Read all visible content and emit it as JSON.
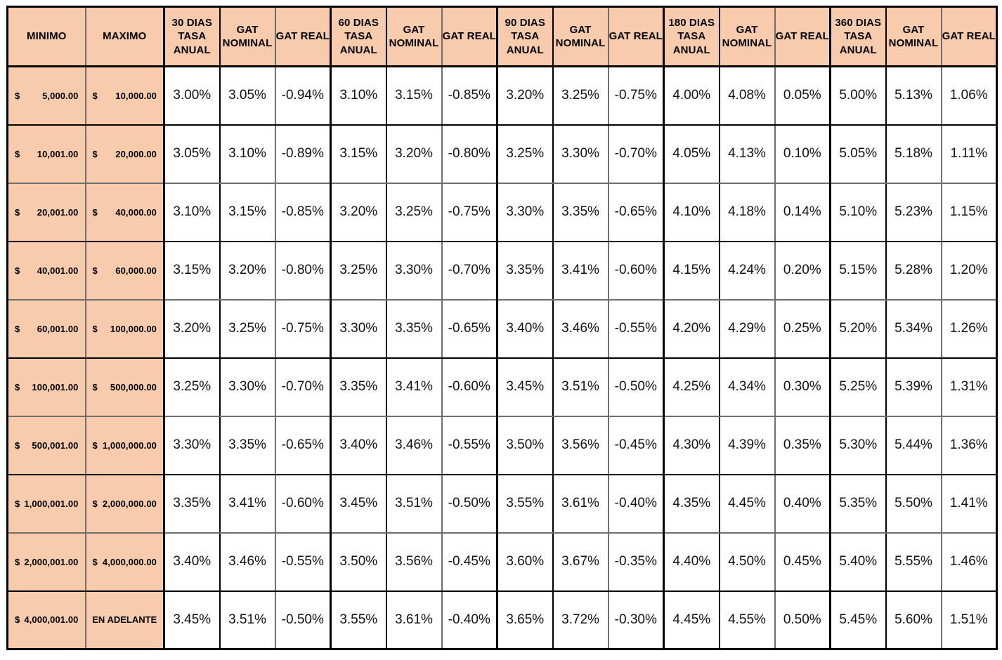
{
  "colors": {
    "header_bg": "#F8CBAD",
    "grid_black": "#000000",
    "grid_gray": "#6E6E6E"
  },
  "table": {
    "currency_symbol": "$",
    "header": [
      "MINIMO",
      "MAXIMO",
      "30 DIAS\nTASA\nANUAL",
      "GAT\nNOMINAL",
      "GAT REAL",
      "60 DIAS\nTASA\nANUAL",
      "GAT\nNOMINAL",
      "GAT REAL",
      "90 DIAS\nTASA\nANUAL",
      "GAT\nNOMINAL",
      "GAT REAL",
      "180 DIAS\nTASA\nANUAL",
      "GAT\nNOMINAL",
      "GAT REAL",
      "360 DIAS\nTASA\nANUAL",
      "GAT\nNOMINAL",
      "GAT REAL"
    ],
    "rows": [
      {
        "minimo": "5,000.00",
        "maximo": "10,000.00",
        "maximo_is_text": false,
        "rates": [
          "3.00%",
          "3.05%",
          "-0.94%",
          "3.10%",
          "3.15%",
          "-0.85%",
          "3.20%",
          "3.25%",
          "-0.75%",
          "4.00%",
          "4.08%",
          "0.05%",
          "5.00%",
          "5.13%",
          "1.06%"
        ]
      },
      {
        "minimo": "10,001.00",
        "maximo": "20,000.00",
        "maximo_is_text": false,
        "rates": [
          "3.05%",
          "3.10%",
          "-0.89%",
          "3.15%",
          "3.20%",
          "-0.80%",
          "3.25%",
          "3.30%",
          "-0.70%",
          "4.05%",
          "4.13%",
          "0.10%",
          "5.05%",
          "5.18%",
          "1.11%"
        ]
      },
      {
        "minimo": "20,001.00",
        "maximo": "40,000.00",
        "maximo_is_text": false,
        "rates": [
          "3.10%",
          "3.15%",
          "-0.85%",
          "3.20%",
          "3.25%",
          "-0.75%",
          "3.30%",
          "3.35%",
          "-0.65%",
          "4.10%",
          "4.18%",
          "0.14%",
          "5.10%",
          "5.23%",
          "1.15%"
        ]
      },
      {
        "minimo": "40,001.00",
        "maximo": "60,000.00",
        "maximo_is_text": false,
        "rates": [
          "3.15%",
          "3.20%",
          "-0.80%",
          "3.25%",
          "3.30%",
          "-0.70%",
          "3.35%",
          "3.41%",
          "-0.60%",
          "4.15%",
          "4.24%",
          "0.20%",
          "5.15%",
          "5.28%",
          "1.20%"
        ]
      },
      {
        "minimo": "60,001.00",
        "maximo": "100,000.00",
        "maximo_is_text": false,
        "rates": [
          "3.20%",
          "3.25%",
          "-0.75%",
          "3.30%",
          "3.35%",
          "-0.65%",
          "3.40%",
          "3.46%",
          "-0.55%",
          "4.20%",
          "4.29%",
          "0.25%",
          "5.20%",
          "5.34%",
          "1.26%"
        ]
      },
      {
        "minimo": "100,001.00",
        "maximo": "500,000.00",
        "maximo_is_text": false,
        "rates": [
          "3.25%",
          "3.30%",
          "-0.70%",
          "3.35%",
          "3.41%",
          "-0.60%",
          "3.45%",
          "3.51%",
          "-0.50%",
          "4.25%",
          "4.34%",
          "0.30%",
          "5.25%",
          "5.39%",
          "1.31%"
        ]
      },
      {
        "minimo": "500,001.00",
        "maximo": "1,000,000.00",
        "maximo_is_text": false,
        "rates": [
          "3.30%",
          "3.35%",
          "-0.65%",
          "3.40%",
          "3.46%",
          "-0.55%",
          "3.50%",
          "3.56%",
          "-0.45%",
          "4.30%",
          "4.39%",
          "0.35%",
          "5.30%",
          "5.44%",
          "1.36%"
        ]
      },
      {
        "minimo": "1,000,001.00",
        "maximo": "2,000,000.00",
        "maximo_is_text": false,
        "rates": [
          "3.35%",
          "3.41%",
          "-0.60%",
          "3.45%",
          "3.51%",
          "-0.50%",
          "3.55%",
          "3.61%",
          "-0.40%",
          "4.35%",
          "4.45%",
          "0.40%",
          "5.35%",
          "5.50%",
          "1.41%"
        ]
      },
      {
        "minimo": "2,000,001.00",
        "maximo": "4,000,000.00",
        "maximo_is_text": false,
        "rates": [
          "3.40%",
          "3.46%",
          "-0.55%",
          "3.50%",
          "3.56%",
          "-0.45%",
          "3.60%",
          "3.67%",
          "-0.35%",
          "4.40%",
          "4.50%",
          "0.45%",
          "5.40%",
          "5.55%",
          "1.46%"
        ]
      },
      {
        "minimo": "4,000,001.00",
        "maximo": "EN ADELANTE",
        "maximo_is_text": true,
        "rates": [
          "3.45%",
          "3.51%",
          "-0.50%",
          "3.55%",
          "3.61%",
          "-0.40%",
          "3.65%",
          "3.72%",
          "-0.30%",
          "4.45%",
          "4.55%",
          "0.50%",
          "5.45%",
          "5.60%",
          "1.51%"
        ]
      }
    ]
  }
}
